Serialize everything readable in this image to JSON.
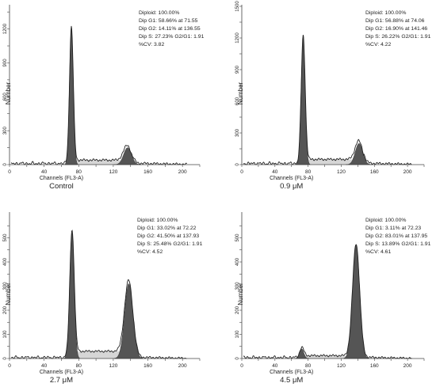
{
  "chart_data": [
    {
      "type": "area",
      "condition": "Control",
      "xlabel": "Channels (FL3-A)",
      "ylabel": "Number",
      "xlim": [
        0,
        220
      ],
      "ylim": [
        0,
        1400
      ],
      "xticks": [
        0,
        20,
        40,
        60,
        80,
        100,
        120,
        140,
        160,
        180,
        200,
        220
      ],
      "xtick_labels": [
        "0",
        "",
        "40",
        "",
        "80",
        "",
        "120",
        "",
        "160",
        "",
        "200",
        ""
      ],
      "yticks": [
        0,
        150,
        300,
        450,
        600,
        750,
        900,
        1050,
        1200,
        1350
      ],
      "ytick_labels": [
        "0",
        "",
        "300",
        "",
        "600",
        "",
        "900",
        "",
        "1200",
        ""
      ],
      "stats": [
        "Diploid: 100.00%",
        "Dip G1: 58.66% at 71.55",
        "Dip G2: 14.11% at 136.55",
        "Dip S: 27.23%  G2/G1: 1.91",
        "%CV: 3.82"
      ],
      "g1_peak": {
        "center": 71.55,
        "height": 1200,
        "sigma": 2.2
      },
      "g2_peak": {
        "center": 136.55,
        "height": 150,
        "sigma": 4.5
      },
      "s_level": 40
    },
    {
      "type": "area",
      "condition": "0.9 μM",
      "xlabel": "Channels (FL3-A)",
      "ylabel": "Number",
      "xlim": [
        0,
        220
      ],
      "ylim": [
        0,
        1500
      ],
      "xticks": [
        0,
        20,
        40,
        60,
        80,
        100,
        120,
        140,
        160,
        180,
        200,
        220
      ],
      "xtick_labels": [
        "0",
        "",
        "40",
        "",
        "80",
        "",
        "120",
        "",
        "160",
        "",
        "200",
        ""
      ],
      "yticks": [
        0,
        150,
        300,
        450,
        600,
        750,
        900,
        1050,
        1200,
        1350,
        1500
      ],
      "ytick_labels": [
        "0",
        "",
        "300",
        "",
        "600",
        "",
        "900",
        "",
        "1200",
        "",
        "1500"
      ],
      "stats": [
        "Diploid: 100.00%",
        "Dip G1: 56.88% at 74.06",
        "Dip G2: 16.90% at 141.46",
        "Dip S: 26.22%  G2/G1: 1.91",
        "%CV: 4.22"
      ],
      "g1_peak": {
        "center": 74.06,
        "height": 1200,
        "sigma": 2.4
      },
      "g2_peak": {
        "center": 141.46,
        "height": 200,
        "sigma": 4.5
      },
      "s_level": 50
    },
    {
      "type": "area",
      "condition": "2.7 μM",
      "xlabel": "Channels (FL3-A)",
      "ylabel": "Number",
      "xlim": [
        0,
        220
      ],
      "ylim": [
        0,
        600
      ],
      "xticks": [
        0,
        20,
        40,
        60,
        80,
        100,
        120,
        140,
        160,
        180,
        200,
        220
      ],
      "xtick_labels": [
        "0",
        "",
        "40",
        "",
        "80",
        "",
        "120",
        "",
        "160",
        "",
        "200",
        ""
      ],
      "yticks": [
        0,
        50,
        100,
        150,
        200,
        250,
        300,
        350,
        400,
        450,
        500,
        550
      ],
      "ytick_labels": [
        "0",
        "",
        "100",
        "",
        "200",
        "",
        "300",
        "",
        "400",
        "",
        "500",
        ""
      ],
      "stats": [
        "Diploid: 100.00%",
        "Dip G1: 33.02% at 72.22",
        "Dip G2: 41.50% at 137.93",
        "Dip S: 25.48%  G2/G1: 1.91",
        "%CV: 4.52"
      ],
      "g1_peak": {
        "center": 72.22,
        "height": 520,
        "sigma": 2.6
      },
      "g2_peak": {
        "center": 137.93,
        "height": 310,
        "sigma": 4.8
      },
      "s_level": 30
    },
    {
      "type": "area",
      "condition": "4.5 μM",
      "xlabel": "Channels (FL3-A)",
      "ylabel": "Number",
      "xlim": [
        0,
        220
      ],
      "ylim": [
        0,
        600
      ],
      "xticks": [
        0,
        20,
        40,
        60,
        80,
        100,
        120,
        140,
        160,
        180,
        200,
        220
      ],
      "xtick_labels": [
        "0",
        "",
        "40",
        "",
        "80",
        "",
        "120",
        "",
        "160",
        "",
        "200",
        ""
      ],
      "yticks": [
        0,
        50,
        100,
        150,
        200,
        250,
        300,
        350,
        400,
        450,
        500,
        550
      ],
      "ytick_labels": [
        "0",
        "",
        "100",
        "",
        "200",
        "",
        "300",
        "",
        "400",
        "",
        "500",
        ""
      ],
      "stats": [
        "Diploid: 100.00%",
        "Dip G1: 3.11% at 72.23",
        "Dip G2: 83.01% at 137.95",
        "Dip S: 13.89%  G2/G1: 1.91",
        "%CV: 4.61"
      ],
      "g1_peak": {
        "center": 72.23,
        "height": 40,
        "sigma": 2.6
      },
      "g2_peak": {
        "center": 137.95,
        "height": 470,
        "sigma": 4.3
      },
      "s_level": 12
    }
  ]
}
